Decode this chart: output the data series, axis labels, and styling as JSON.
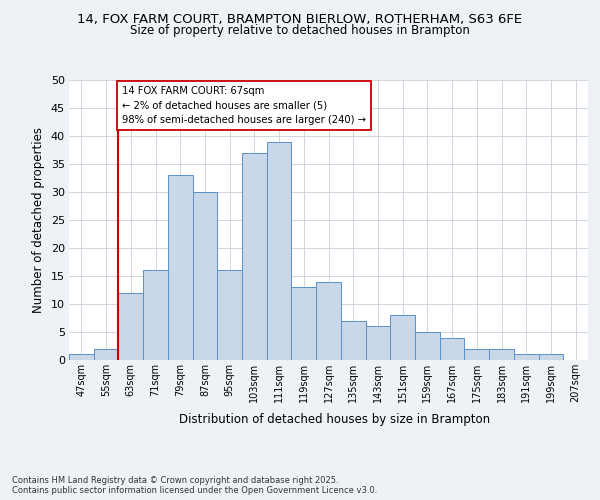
{
  "title_line1": "14, FOX FARM COURT, BRAMPTON BIERLOW, ROTHERHAM, S63 6FE",
  "title_line2": "Size of property relative to detached houses in Brampton",
  "xlabel": "Distribution of detached houses by size in Brampton",
  "ylabel": "Number of detached properties",
  "categories": [
    "47sqm",
    "55sqm",
    "63sqm",
    "71sqm",
    "79sqm",
    "87sqm",
    "95sqm",
    "103sqm",
    "111sqm",
    "119sqm",
    "127sqm",
    "135sqm",
    "143sqm",
    "151sqm",
    "159sqm",
    "167sqm",
    "175sqm",
    "183sqm",
    "191sqm",
    "199sqm",
    "207sqm"
  ],
  "bar_heights": [
    1,
    2,
    12,
    16,
    33,
    30,
    16,
    37,
    39,
    13,
    14,
    7,
    6,
    8,
    5,
    4,
    2,
    2,
    1,
    1,
    0
  ],
  "bar_color": "#c8d8e8",
  "bar_edge_color": "#5b8fc9",
  "vline_color": "#cc0000",
  "annotation_text": "14 FOX FARM COURT: 67sqm\n← 2% of detached houses are smaller (5)\n98% of semi-detached houses are larger (240) →",
  "annotation_box_edge": "#cc0000",
  "ylim": [
    0,
    50
  ],
  "yticks": [
    0,
    5,
    10,
    15,
    20,
    25,
    30,
    35,
    40,
    45,
    50
  ],
  "footnote": "Contains HM Land Registry data © Crown copyright and database right 2025.\nContains public sector information licensed under the Open Government Licence v3.0.",
  "bg_color": "#eef2f7",
  "plot_bg_color": "#ffffff",
  "grid_color": "#c8d0da"
}
